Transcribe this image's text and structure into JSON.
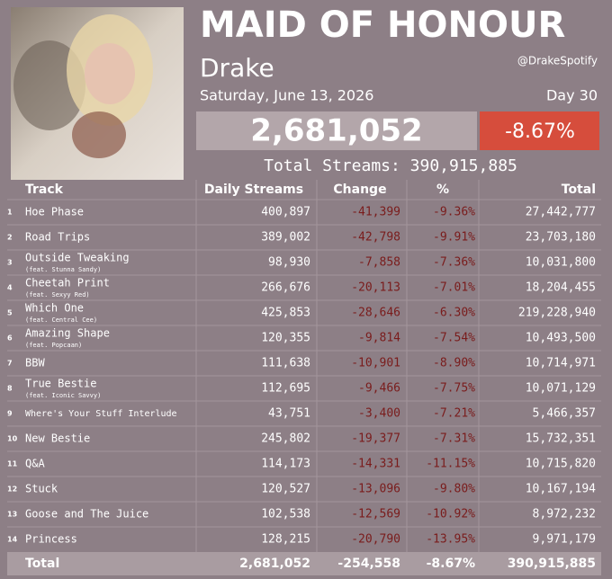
{
  "header": {
    "title": "MAID OF HONOUR",
    "artist": "Drake",
    "handle": "@DrakeSpotify",
    "date": "Saturday, June 13, 2026",
    "day": "Day 30",
    "daily_total": "2,681,052",
    "change_pct": "-8.67%",
    "total_streams": "Total Streams: 390,915,885"
  },
  "table": {
    "columns": [
      "Track",
      "Daily Streams",
      "Change",
      "%",
      "Total"
    ],
    "rows": [
      {
        "num": "1",
        "track": "Hoe Phase",
        "daily": "400,897",
        "change": "-41,399",
        "pct": "-9.36%",
        "total": "27,442,777"
      },
      {
        "num": "2",
        "track": "Road Trips",
        "daily": "389,002",
        "change": "-42,798",
        "pct": "-9.91%",
        "total": "23,703,180"
      },
      {
        "num": "3",
        "track": "Outside Tweaking",
        "feat": "(feat. Stunna Sandy)",
        "daily": "98,930",
        "change": "-7,858",
        "pct": "-7.36%",
        "total": "10,031,800"
      },
      {
        "num": "4",
        "track": "Cheetah Print",
        "feat": "(feat. Sexyy Red)",
        "daily": "266,676",
        "change": "-20,113",
        "pct": "-7.01%",
        "total": "18,204,455"
      },
      {
        "num": "5",
        "track": "Which One",
        "feat": "(feat. Central Cee)",
        "daily": "425,853",
        "change": "-28,646",
        "pct": "-6.30%",
        "total": "219,228,940"
      },
      {
        "num": "6",
        "track": "Amazing Shape",
        "feat": "(feat. Popcaan)",
        "daily": "120,355",
        "change": "-9,814",
        "pct": "-7.54%",
        "total": "10,493,500"
      },
      {
        "num": "7",
        "track": "BBW",
        "daily": "111,638",
        "change": "-10,901",
        "pct": "-8.90%",
        "total": "10,714,971"
      },
      {
        "num": "8",
        "track": "True Bestie",
        "feat": "(feat. Iconic Savvy)",
        "daily": "112,695",
        "change": "-9,466",
        "pct": "-7.75%",
        "total": "10,071,129"
      },
      {
        "num": "9",
        "track": "Where's Your Stuff Interlude",
        "daily": "43,751",
        "change": "-3,400",
        "pct": "-7.21%",
        "total": "5,466,357"
      },
      {
        "num": "10",
        "track": "New Bestie",
        "daily": "245,802",
        "change": "-19,377",
        "pct": "-7.31%",
        "total": "15,732,351"
      },
      {
        "num": "11",
        "track": "Q&A",
        "daily": "114,173",
        "change": "-14,331",
        "pct": "-11.15%",
        "total": "10,715,820"
      },
      {
        "num": "12",
        "track": "Stuck",
        "daily": "120,527",
        "change": "-13,096",
        "pct": "-9.80%",
        "total": "10,167,194"
      },
      {
        "num": "13",
        "track": "Goose and The Juice",
        "daily": "102,538",
        "change": "-12,569",
        "pct": "-10.92%",
        "total": "8,972,232"
      },
      {
        "num": "14",
        "track": "Princess",
        "daily": "128,215",
        "change": "-20,790",
        "pct": "-13.95%",
        "total": "9,971,179"
      }
    ],
    "total": {
      "label": "Total",
      "daily": "2,681,052",
      "change": "-254,558",
      "pct": "-8.67%",
      "total": "390,915,885"
    }
  }
}
